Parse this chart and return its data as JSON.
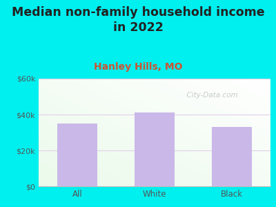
{
  "title": "Median non-family household income\nin 2022",
  "subtitle": "Hanley Hills, MO",
  "categories": [
    "All",
    "White",
    "Black"
  ],
  "values": [
    35000,
    41000,
    33000
  ],
  "bar_color": "#c9b8e8",
  "background_outer": "#00efef",
  "plot_bg_top": "#f5fff5",
  "plot_bg_bottom": "#e8f5e8",
  "ylim": [
    0,
    60000
  ],
  "yticks": [
    0,
    20000,
    40000,
    60000
  ],
  "ytick_labels": [
    "$0",
    "$20k",
    "$40k",
    "$60k"
  ],
  "title_fontsize": 12.5,
  "subtitle_fontsize": 10,
  "subtitle_color": "#cc5533",
  "title_color": "#222222",
  "tick_color": "#555555",
  "grid_color": "#e0d0e8",
  "watermark": "  City-Data.com",
  "watermark_color": "#c0c8c0"
}
